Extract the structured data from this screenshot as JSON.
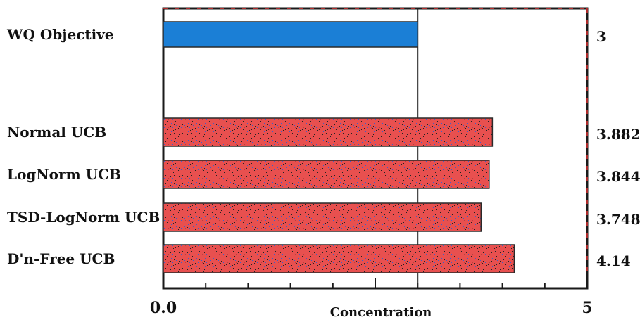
{
  "chart_data": {
    "type": "bar",
    "orientation": "horizontal",
    "categories": [
      "WQ Objective",
      "",
      "Normal UCB",
      "LogNorm UCB",
      "TSD-LogNorm UCB",
      "D'n-Free UCB"
    ],
    "values": [
      3,
      null,
      3.882,
      3.844,
      3.748,
      4.14
    ],
    "value_labels": [
      "3",
      "",
      "3.882",
      "3.844",
      "3.748",
      "4.14"
    ],
    "title": "",
    "xlabel": "Concentration",
    "ylabel": "",
    "xlim": [
      0,
      5
    ],
    "xtick_labels": [
      "0.0",
      "5"
    ],
    "reference_line": 3,
    "grid": false,
    "colors": {
      "objective_bar": "#1b7fd6",
      "ucb_bar": "#e8504f",
      "axis": "#1a1a1a",
      "frame_accent": "#e03030"
    }
  }
}
